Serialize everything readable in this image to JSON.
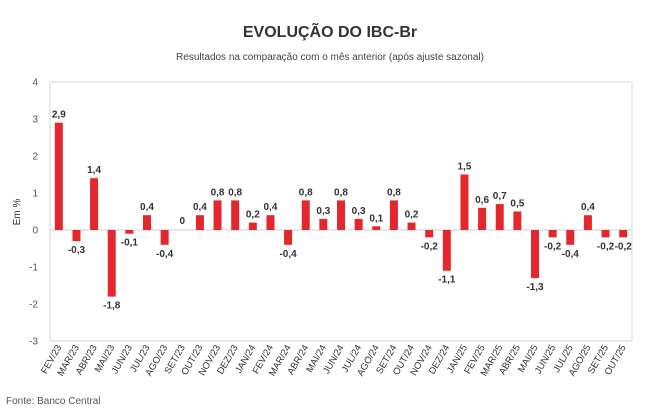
{
  "chart_data": {
    "type": "bar",
    "title": "EVOLUÇÃO DO IBC-Br",
    "subtitle": "Resultados na comparação com o mês anterior (após ajuste sazonal)",
    "xlabel": "",
    "ylabel": "Em %",
    "ylim": [
      -3,
      4
    ],
    "yticks": [
      4,
      3,
      2,
      1,
      0,
      -1,
      -2,
      -3
    ],
    "categories": [
      "FEV/23",
      "MAR/23",
      "ABR/23",
      "MAI/23",
      "JUN/23",
      "JUL/23",
      "AGO/23",
      "SET/23",
      "OUT/23",
      "NOV/23",
      "DEZ/23",
      "JAN/24",
      "FEV/24",
      "MAR/24",
      "ABR/24",
      "MAI/24",
      "JUN/24",
      "JUL/24",
      "AGO/24",
      "SET/24",
      "OUT/24",
      "NOV/24",
      "DEZ/24",
      "JAN/25",
      "FEV/25",
      "MAR/25",
      "ABR/25",
      "MAI/25",
      "JUN/25",
      "JUL/25",
      "AGO/25",
      "SET/25",
      "OUT/25"
    ],
    "values": [
      2.9,
      -0.3,
      1.4,
      -1.8,
      -0.1,
      0.4,
      -0.4,
      0,
      0.4,
      0.8,
      0.8,
      0.2,
      0.4,
      -0.4,
      0.8,
      0.3,
      0.8,
      0.3,
      0.1,
      0.8,
      0.2,
      -0.2,
      -1.1,
      1.5,
      0.6,
      0.7,
      0.5,
      -1.3,
      -0.2,
      -0.4,
      0.4,
      -0.2,
      -0.2
    ],
    "labels": [
      "2,9",
      "-0,3",
      "1,4",
      "-1,8",
      "-0,1",
      "0,4",
      "-0,4",
      "0",
      "0,4",
      "0,8",
      "0,8",
      "0,2",
      "0,4",
      "-0,4",
      "0,8",
      "0,3",
      "0,8",
      "0,3",
      "0,1",
      "0,8",
      "0,2",
      "-0,2",
      "-1,1",
      "1,5",
      "0,6",
      "0,7",
      "0,5",
      "-1,3",
      "-0,2",
      "-0,4",
      "0,4",
      "-0,2",
      "-0,2"
    ],
    "bar_color": "#e3272c",
    "grid": false,
    "legend": "none",
    "source": "Fonte: Banco Central"
  }
}
